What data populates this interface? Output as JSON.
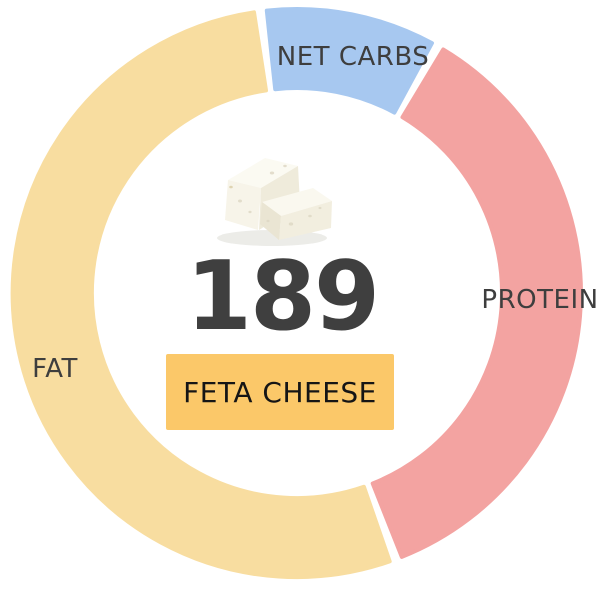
{
  "chart_data": {
    "type": "donut",
    "title": "",
    "description": "Macronutrient split ring for feta cheese",
    "segments": [
      {
        "label": "NET CARBS",
        "percent": 10.3,
        "color": "#A7C8F0"
      },
      {
        "label": "PROTEIN",
        "percent": 36.1,
        "color": "#F3A3A1"
      },
      {
        "label": "FAT",
        "percent": 53.6,
        "color": "#F8DDA0"
      }
    ],
    "layout": {
      "start_deg": 97.4,
      "direction": "clockwise",
      "gap_deg": 2.6,
      "inner_radius_ratio": 0.72,
      "labels": "on-ring",
      "grid": false,
      "legend": "none"
    },
    "center": {
      "calories": "189",
      "food": "FETA CHEESE"
    }
  },
  "center": {
    "calories": "189",
    "food_label": "FETA CHEESE",
    "badge_color": "#FBC869",
    "image": "feta-cheese-blocks"
  }
}
